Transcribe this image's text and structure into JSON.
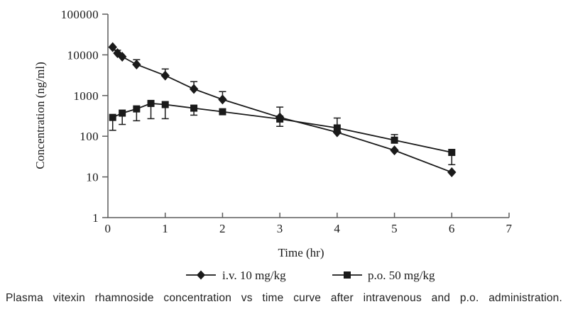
{
  "figure": {
    "caption": "Plasma vitexin rhamnoside concentration vs time curve after intravenous and p.o. administration."
  },
  "colors": {
    "data": "#1a1a1a",
    "axis": "#5c5c5c",
    "background": "#ffffff"
  },
  "chart_data": {
    "type": "line",
    "y_scale": "log",
    "title": "",
    "xlabel": "Time (hr)",
    "ylabel": "Concentration (ng/ml)",
    "xlim": [
      0,
      7
    ],
    "ylim": [
      1,
      100000
    ],
    "x_ticks": [
      0,
      1,
      2,
      3,
      4,
      5,
      6,
      7
    ],
    "y_ticks": [
      1,
      10,
      100,
      1000,
      10000,
      100000
    ],
    "grid": false,
    "legend_position": "bottom",
    "error_bars": "asymmetric, caps shown",
    "series": [
      {
        "name": "i.v. 10 mg/kg",
        "marker": "diamond",
        "x": [
          0.083,
          0.167,
          0.25,
          0.5,
          1,
          1.5,
          2,
          3,
          4,
          5,
          6
        ],
        "y": [
          15500,
          11000,
          9000,
          5800,
          3100,
          1450,
          800,
          290,
          125,
          45,
          13
        ],
        "err_hi": [
          null,
          13000,
          null,
          7600,
          4500,
          2200,
          1250,
          520,
          null,
          null,
          null
        ],
        "err_lo": [
          null,
          null,
          null,
          null,
          null,
          null,
          null,
          175,
          null,
          null,
          null
        ]
      },
      {
        "name": "p.o. 50 mg/kg",
        "marker": "square",
        "x": [
          0.083,
          0.25,
          0.5,
          0.75,
          1,
          1.5,
          2,
          3,
          4,
          5,
          6
        ],
        "y": [
          290,
          370,
          470,
          640,
          600,
          490,
          400,
          265,
          160,
          80,
          40
        ],
        "err_hi": [
          null,
          null,
          null,
          null,
          null,
          null,
          null,
          null,
          280,
          110,
          null
        ],
        "err_lo": [
          140,
          195,
          240,
          270,
          270,
          330,
          null,
          null,
          null,
          null,
          20
        ]
      }
    ]
  }
}
